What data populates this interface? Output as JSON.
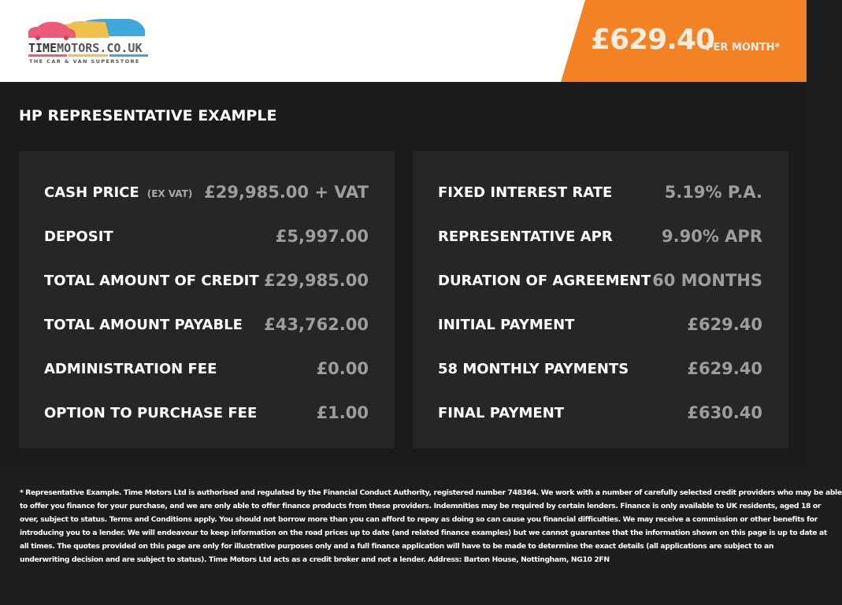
{
  "header": {
    "logo": {
      "brand_a": "TIME",
      "brand_b": "MOTORS.CO.UK",
      "tagline": "THE CAR & VAN SUPERSTORE",
      "colors": [
        "#ee5a7a",
        "#f0c04a",
        "#3ea7dc"
      ]
    },
    "price": "£629.40",
    "per_month": "PER MONTH*",
    "accent": "#f48124"
  },
  "title": "HP REPRESENTATIVE EXAMPLE",
  "left": [
    {
      "label": "CASH PRICE",
      "note": "(EX VAT)",
      "value": "£29,985.00 + VAT"
    },
    {
      "label": "DEPOSIT",
      "value": "£5,997.00"
    },
    {
      "label": "TOTAL AMOUNT OF CREDIT",
      "value": "£29,985.00"
    },
    {
      "label": "TOTAL AMOUNT PAYABLE",
      "value": "£43,762.00"
    },
    {
      "label": "ADMINISTRATION FEE",
      "value": "£0.00"
    },
    {
      "label": "OPTION TO PURCHASE FEE",
      "value": "£1.00"
    }
  ],
  "right": [
    {
      "label": "FIXED INTEREST RATE",
      "value": "5.19% P.A."
    },
    {
      "label": "REPRESENTATIVE APR",
      "value": "9.90% APR"
    },
    {
      "label": "DURATION OF AGREEMENT",
      "value": "60 MONTHS"
    },
    {
      "label": "INITIAL PAYMENT",
      "value": "£629.40"
    },
    {
      "label": "58 MONTHLY PAYMENTS",
      "value": "£629.40"
    },
    {
      "label": "FINAL PAYMENT",
      "value": "£630.40"
    }
  ],
  "disclaimer": [
    "* Representative Example. Time Motors Ltd is authorised and regulated by the Financial Conduct Authority, registered number 748364. We work with a number of carefully selected credit providers who may be able",
    "to offer you finance for your purchase, and we are only able to offer finance products from these providers. Indemnities may be required by certain lenders. Finance is only available to UK residents, aged 18 or",
    "over, subject to status. Terms and Conditions apply. You should not borrow more than you can afford to repay as doing so can cause you financial difficulties. We may receive a commission or other benefits for",
    "introducing you to a lender. We will endeavour to keep information on the road prices up to date (and related finance examples) but we cannot guarantee that the information shown on this page is up to date at",
    "all times. The quotes provided on this page are only for illustrative purposes only and a full finance application will have to be made to determine the exact details (all applications are subject to an",
    "underwriting decision and are subject to status). Time Motors Ltd acts as a credit broker and not a lender. Address: Barton House, Nottingham, NG10 2FN"
  ]
}
